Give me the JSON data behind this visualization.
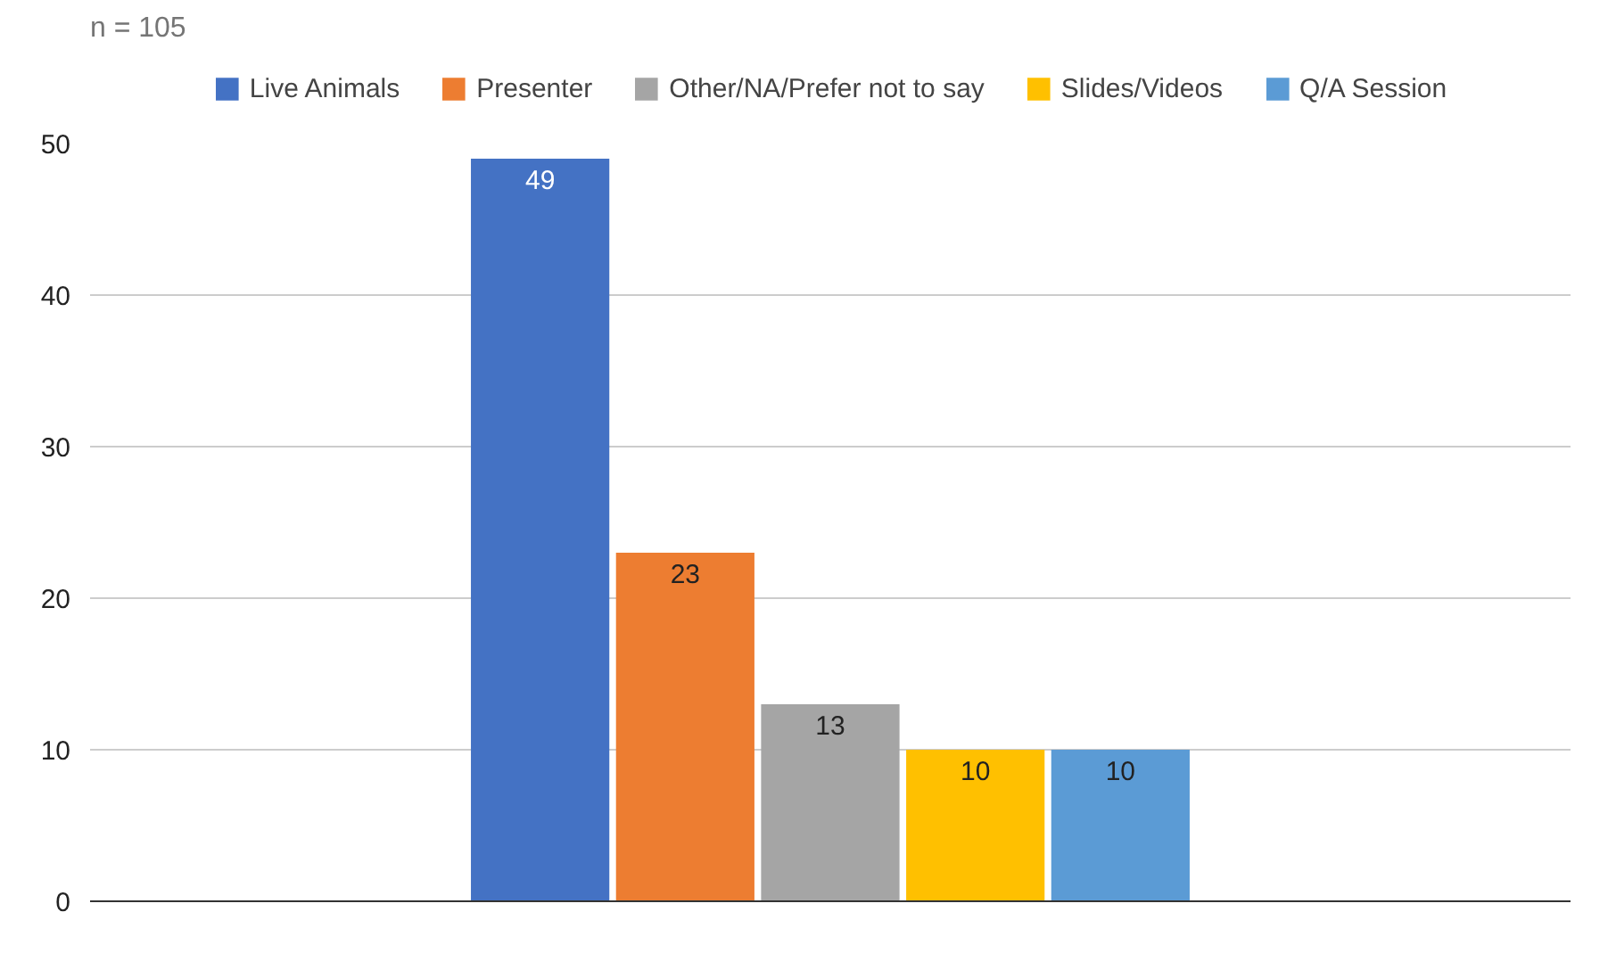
{
  "chart_data": {
    "type": "bar",
    "title": "n = 105",
    "categories": [
      null
    ],
    "series": [
      {
        "name": "Live Animals",
        "color": "#4472c4",
        "values": [
          49
        ]
      },
      {
        "name": "Presenter",
        "color": "#ed7d31",
        "values": [
          23
        ]
      },
      {
        "name": "Other/NA/Prefer not to say",
        "color": "#a5a5a5",
        "values": [
          13
        ]
      },
      {
        "name": "Slides/Videos",
        "color": "#ffc000",
        "values": [
          10
        ]
      },
      {
        "name": "Q/A Session",
        "color": "#5b9bd5",
        "values": [
          10
        ]
      }
    ],
    "ylim": [
      0,
      50
    ],
    "yticks": [
      0,
      10,
      20,
      30,
      40,
      50
    ],
    "grid": "y",
    "legend": "top",
    "data_labels": true
  }
}
